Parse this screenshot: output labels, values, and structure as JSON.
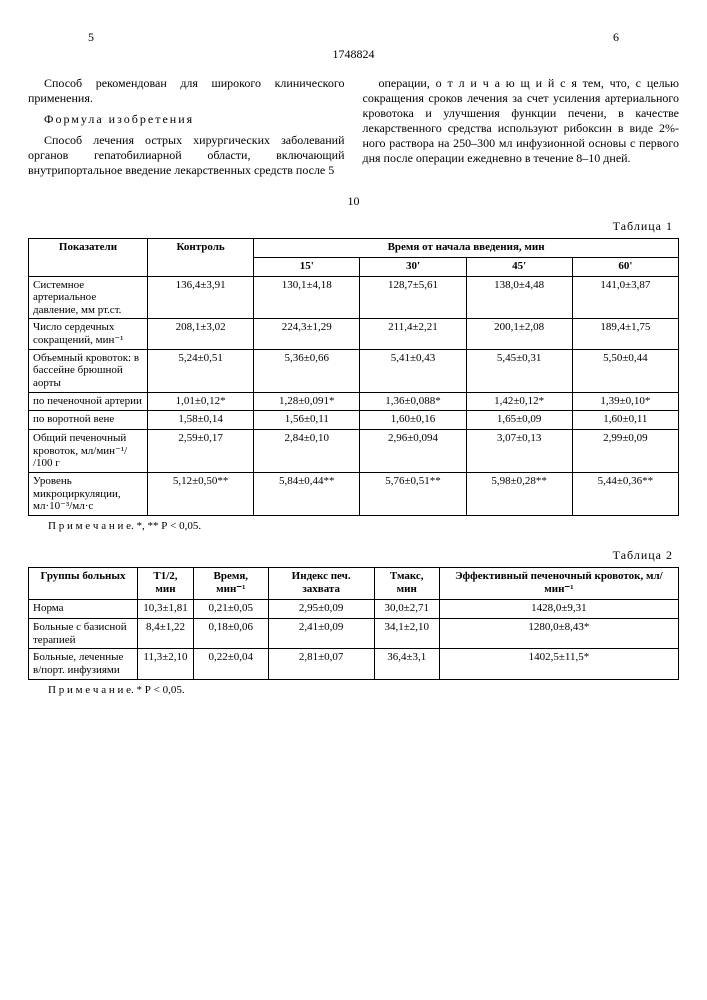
{
  "header": {
    "page_left": "5",
    "page_right": "6",
    "doc_number": "1748824",
    "mid_line": "10"
  },
  "text": {
    "p1": "Способ рекомендован для широкого клинического применения.",
    "formula_head": "Формула изобретения",
    "p2": "Способ лечения острых хирургических заболеваний органов гепатобилиарной области, включающий внутрипортальное введение лекарственных средств после",
    "line5": "5",
    "p3": "операции, о т л и ч а ю щ и й с я тем, что, с целью сокращения сроков лечения за счет усиления артериального кровотока и улучшения функции печени, в качестве лекарственного средства используют рибоксин в виде 2%-ного раствора на 250–300 мл инфузионной основы с первого дня после операции ежедневно в течение 8–10 дней."
  },
  "table1": {
    "label": "Таблица 1",
    "head": {
      "c1": "Показатели",
      "c2": "Контроль",
      "group": "Время от начала введения, мин",
      "t15": "15'",
      "t30": "30'",
      "t45": "45'",
      "t60": "60'"
    },
    "rows": [
      {
        "label": "Системное артериальное давление, мм рт.ст.",
        "vals": [
          "136,4±3,91",
          "130,1±4,18",
          "128,7±5,61",
          "138,0±4,48",
          "141,0±3,87"
        ]
      },
      {
        "label": "Число сердечных сокращений, мин⁻¹",
        "vals": [
          "208,1±3,02",
          "224,3±1,29",
          "211,4±2,21",
          "200,1±2,08",
          "189,4±1,75"
        ]
      },
      {
        "label": "Объемный кровоток: в бассейне брюшной аорты",
        "vals": [
          "5,24±0,51",
          "5,36±0,66",
          "5,41±0,43",
          "5,45±0,31",
          "5,50±0,44"
        ]
      },
      {
        "label": "по печеночной артерии",
        "vals": [
          "1,01±0,12*",
          "1,28±0,091*",
          "1,36±0,088*",
          "1,42±0,12*",
          "1,39±0,10*"
        ]
      },
      {
        "label": "по воротной вене",
        "vals": [
          "1,58±0,14",
          "1,56±0,11",
          "1,60±0,16",
          "1,65±0,09",
          "1,60±0,11"
        ]
      },
      {
        "label": "Общий печеночный кровоток, мл/мин⁻¹/ /100 г",
        "vals": [
          "2,59±0,17",
          "2,84±0,10",
          "2,96±0,094",
          "3,07±0,13",
          "2,99±0,09"
        ]
      },
      {
        "label": "Уровень микроциркуляции, мл·10⁻³/мл·с",
        "vals": [
          "5,12±0,50**",
          "5,84±0,44**",
          "5,76±0,51**",
          "5,98±0,28**",
          "5,44±0,36**"
        ]
      }
    ],
    "note": "П р и м е ч а н и е. *, ** Р < 0,05."
  },
  "table2": {
    "label": "Таблица 2",
    "head": {
      "c1": "Группы больных",
      "c2": "Т1/2, мин",
      "c3": "Время, мин⁻¹",
      "c4": "Индекс печ. захвата",
      "c5": "Тмакс, мин",
      "c6": "Эффективный печеночный кровоток, мл/мин⁻¹"
    },
    "rows": [
      {
        "label": "Норма",
        "vals": [
          "10,3±1,81",
          "0,21±0,05",
          "2,95±0,09",
          "30,0±2,71",
          "1428,0±9,31"
        ]
      },
      {
        "label": "Больные с базисной терапией",
        "vals": [
          "8,4±1,22",
          "0,18±0,06",
          "2,41±0,09",
          "34,1±2,10",
          "1280,0±8,43*"
        ]
      },
      {
        "label": "Больные, леченные в/порт. инфузиями",
        "vals": [
          "11,3±2,10",
          "0,22±0,04",
          "2,81±0,07",
          "36,4±3,1",
          "1402,5±11,5*"
        ]
      }
    ],
    "note": "П р и м е ч а н и е. * Р < 0,05."
  }
}
